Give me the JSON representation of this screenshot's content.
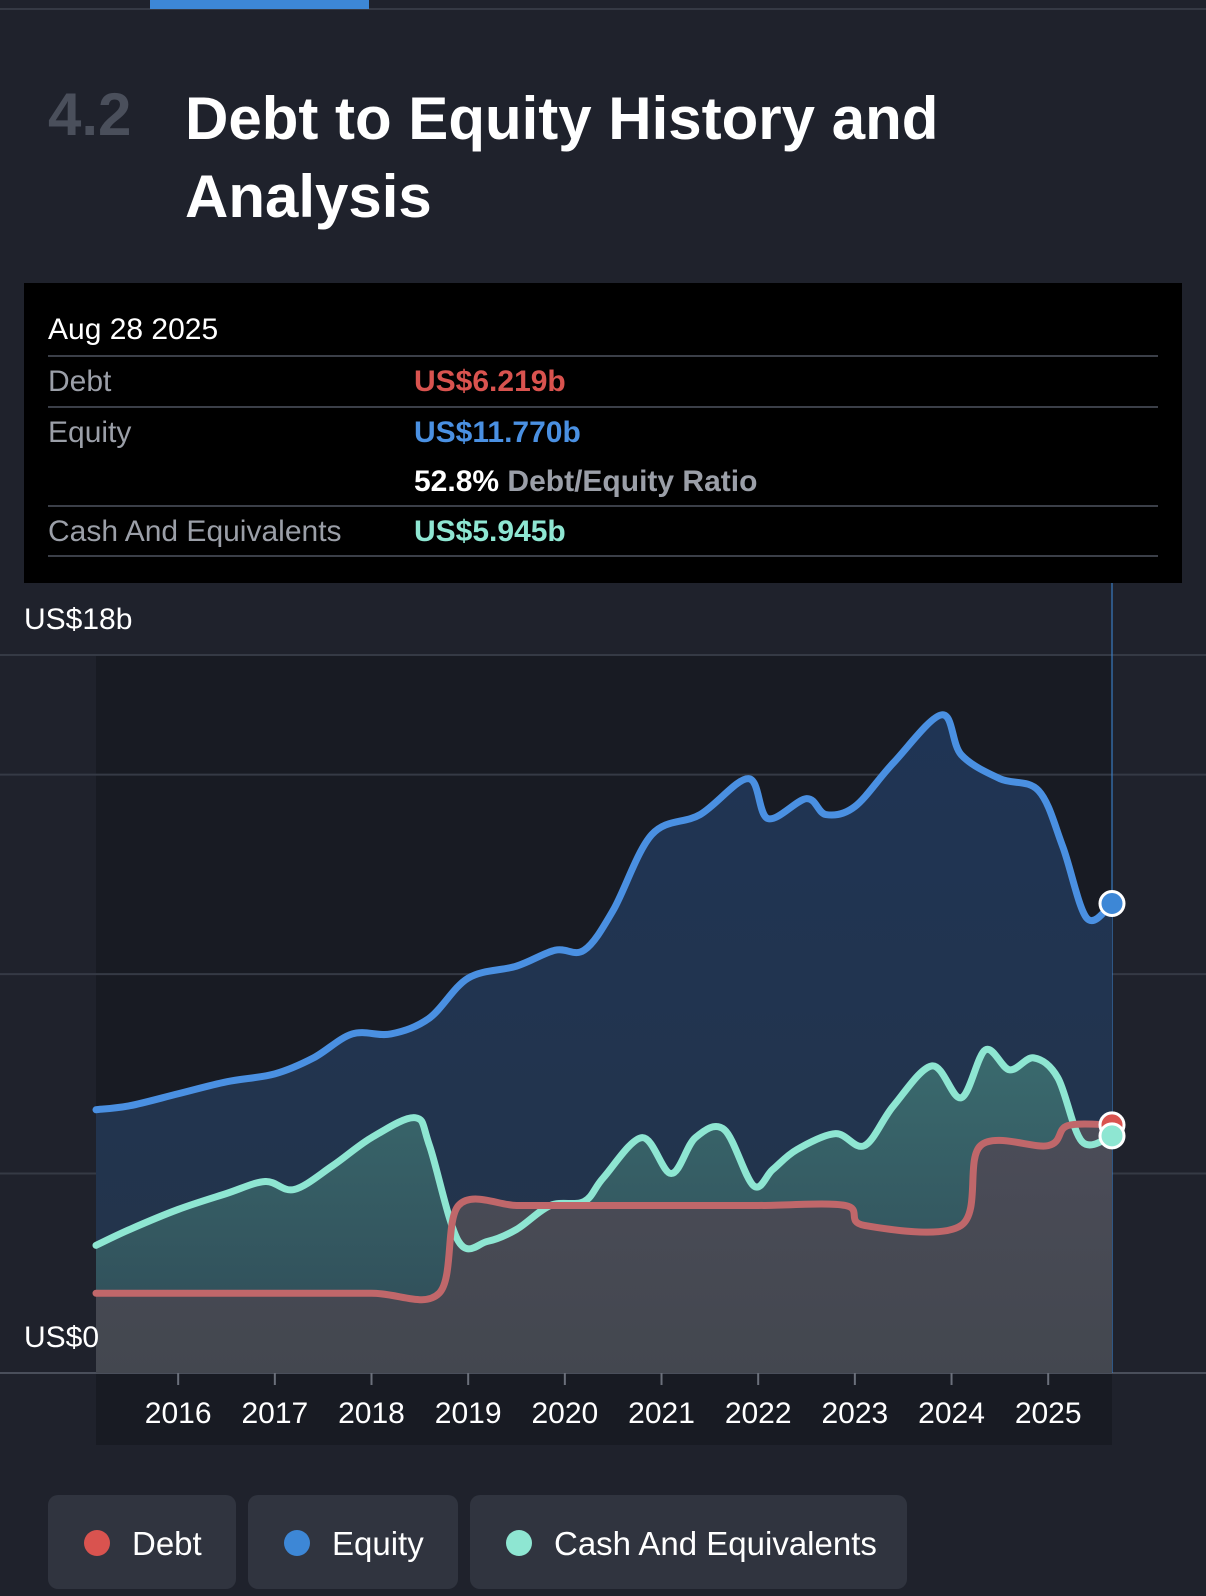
{
  "section": {
    "number": "4.2",
    "title": "Debt to Equity History and Analysis"
  },
  "tooltip": {
    "date": "Aug 28 2025",
    "debt_label": "Debt",
    "debt_value": "US$6.219b",
    "equity_label": "Equity",
    "equity_value": "US$11.770b",
    "ratio_value": "52.8%",
    "ratio_label": "Debt/Equity Ratio",
    "cash_label": "Cash And Equivalents",
    "cash_value": "US$5.945b"
  },
  "colors": {
    "debt": "#d9534f",
    "equity": "#3d87d6",
    "cash": "#8ee6d2"
  },
  "legend": [
    {
      "key": "debt",
      "label": "Debt",
      "color": "#d9534f"
    },
    {
      "key": "equity",
      "label": "Equity",
      "color": "#3d87d6"
    },
    {
      "key": "cash",
      "label": "Cash And Equivalents",
      "color": "#8ee6d2"
    }
  ],
  "chart_data": {
    "type": "area",
    "y_top_label": "US$18b",
    "y_bottom_label": "US$0",
    "ylim": [
      0,
      18
    ],
    "xlim": [
      2015.15,
      2025.66
    ],
    "x_ticks": [
      2016,
      2017,
      2018,
      2019,
      2020,
      2021,
      2022,
      2023,
      2024,
      2025
    ],
    "x_tick_labels": [
      "2016",
      "2017",
      "2018",
      "2019",
      "2020",
      "2021",
      "2022",
      "2023",
      "2024",
      "2025"
    ],
    "grid": true,
    "series": [
      {
        "name": "Equity",
        "x": [
          2015.15,
          2015.5,
          2016,
          2016.5,
          2017,
          2017.4,
          2017.8,
          2018.2,
          2018.6,
          2019.0,
          2019.5,
          2019.9,
          2020.2,
          2020.5,
          2020.9,
          2021.4,
          2021.9,
          2022.1,
          2022.5,
          2022.7,
          2023.0,
          2023.4,
          2023.9,
          2024.1,
          2024.5,
          2024.9,
          2025.15,
          2025.4,
          2025.66
        ],
        "y": [
          6.6,
          6.7,
          7.0,
          7.3,
          7.5,
          7.9,
          8.5,
          8.5,
          8.9,
          9.9,
          10.2,
          10.6,
          10.6,
          11.6,
          13.5,
          14.0,
          14.9,
          13.9,
          14.4,
          14.0,
          14.2,
          15.3,
          16.5,
          15.5,
          14.9,
          14.6,
          13.2,
          11.4,
          11.77
        ]
      },
      {
        "name": "Debt",
        "x": [
          2015.15,
          2016,
          2017,
          2018,
          2018.7,
          2018.9,
          2019.5,
          2020,
          2021,
          2022,
          2022.9,
          2023.1,
          2024.1,
          2024.3,
          2025,
          2025.2,
          2025.66
        ],
        "y": [
          2.0,
          2.0,
          2.0,
          2.0,
          2.0,
          4.2,
          4.2,
          4.2,
          4.2,
          4.2,
          4.2,
          3.7,
          3.7,
          5.7,
          5.7,
          6.2,
          6.219
        ]
      },
      {
        "name": "Cash And Equivalents",
        "x": [
          2015.15,
          2015.5,
          2016,
          2016.5,
          2016.9,
          2017.2,
          2017.6,
          2018.0,
          2018.45,
          2018.6,
          2018.9,
          2019.2,
          2019.5,
          2019.85,
          2020.2,
          2020.4,
          2020.8,
          2021.1,
          2021.35,
          2021.65,
          2021.95,
          2022.15,
          2022.4,
          2022.8,
          2023.1,
          2023.4,
          2023.8,
          2024.1,
          2024.35,
          2024.6,
          2024.85,
          2025.1,
          2025.35,
          2025.66
        ],
        "y": [
          3.2,
          3.6,
          4.1,
          4.5,
          4.8,
          4.6,
          5.2,
          5.9,
          6.4,
          5.7,
          3.3,
          3.3,
          3.6,
          4.2,
          4.3,
          4.9,
          5.9,
          5.0,
          5.9,
          6.1,
          4.7,
          5.1,
          5.6,
          6.0,
          5.7,
          6.7,
          7.7,
          6.9,
          8.1,
          7.6,
          7.9,
          7.4,
          5.8,
          5.945
        ]
      }
    ]
  }
}
